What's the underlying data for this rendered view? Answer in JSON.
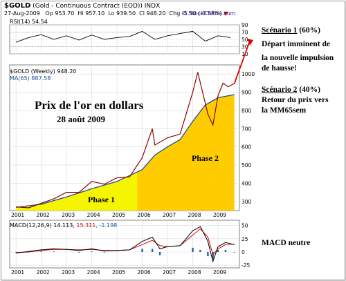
{
  "header": {
    "symbol": "$GOLD",
    "name": "(Gold - Continuous Contract (EOD)) INDX",
    "date": "27-Aug-2009",
    "op": "Op 953.70",
    "hi": "Hi 957.10",
    "lo": "Lo 939.50",
    "cl": "Cl 948.20",
    "chg": "Chg -5.50 (-0.58%)",
    "chg_arrow": "▼",
    "watermark": "© StockCharts.com"
  },
  "panels": {
    "rsi_label": "RSI(14) 54.54",
    "price_label": "$GOLD (Weekly) 948.20",
    "ma_label": "MA(65) 887.58",
    "macd_label_a": "MACD(12,26,9) 14.113, ",
    "macd_label_b": "15.311",
    "macd_label_c": ", -1.198"
  },
  "annotations": {
    "title_line1": "Prix de l'or en dollars",
    "title_line2": "28 août 2009",
    "phase1": "Phase 1",
    "phase2": "Phase 2",
    "scenario1_title": "Scénario 1",
    "scenario1_pct": " (60%)",
    "scenario1_text1": "Départ imminent de",
    "scenario1_text2": "la nouvelle impulsion",
    "scenario1_text3": "de hausse!",
    "scenario2_title": "Scénario 2",
    "scenario2_pct": " (40%)",
    "scenario2_text1": "Retour du prix vers",
    "scenario2_text2": "la MM65sem",
    "macd_note": "MACD neutre"
  },
  "colors": {
    "price": "#8b0000",
    "ma": "#1f4e9c",
    "fill_phase1": "#f5f500",
    "fill_phase2": "#ffcc00",
    "macd": "#000000",
    "signal": "#d00000",
    "hist": "#1f5fa8",
    "arrow": "#e00000",
    "grid": "#d9d9d9"
  },
  "chart_data": [
    {
      "type": "line",
      "panel": "rsi",
      "ylim": [
        10,
        90
      ],
      "yticks": [
        10,
        30,
        50,
        70,
        90
      ],
      "refs": [
        30,
        70
      ],
      "x": [
        2001,
        2001.5,
        2002,
        2002.5,
        2003,
        2003.5,
        2004,
        2004.5,
        2005,
        2005.5,
        2006,
        2006.5,
        2007,
        2007.5,
        2008,
        2008.5,
        2009,
        2009.5
      ],
      "values": [
        42,
        55,
        63,
        50,
        60,
        48,
        62,
        50,
        55,
        58,
        72,
        50,
        60,
        66,
        72,
        45,
        60,
        55
      ]
    },
    {
      "type": "line",
      "panel": "price",
      "title": "Prix de l'or en dollars",
      "ylim": [
        250,
        1050
      ],
      "yticks": [
        300,
        400,
        500,
        600,
        700,
        800,
        900,
        1000
      ],
      "xticks": [
        2001,
        2002,
        2003,
        2004,
        2005,
        2006,
        2007,
        2008,
        2009
      ],
      "series": [
        {
          "name": "$GOLD (Weekly)",
          "x": [
            2001,
            2001.5,
            2002,
            2002.5,
            2003,
            2003.5,
            2004,
            2004.5,
            2005,
            2005.5,
            2006,
            2006.4,
            2006.5,
            2007,
            2007.5,
            2008,
            2008.2,
            2008.6,
            2008.8,
            2009,
            2009.2,
            2009.4,
            2009.65
          ],
          "values": [
            270,
            265,
            290,
            315,
            350,
            350,
            410,
            395,
            430,
            435,
            540,
            700,
            610,
            650,
            670,
            900,
            1010,
            780,
            720,
            880,
            950,
            930,
            948
          ]
        },
        {
          "name": "MA(65)",
          "x": [
            2001,
            2002,
            2003,
            2004,
            2005,
            2006,
            2006.5,
            2007,
            2007.5,
            2008,
            2008.5,
            2009,
            2009.65
          ],
          "values": [
            268,
            285,
            325,
            370,
            410,
            475,
            555,
            600,
            640,
            740,
            830,
            870,
            887
          ]
        }
      ],
      "phases": [
        {
          "name": "Phase 1",
          "x_range": [
            2001,
            2005.8
          ]
        },
        {
          "name": "Phase 2",
          "x_range": [
            2005.8,
            2009.65
          ]
        }
      ]
    },
    {
      "type": "line",
      "panel": "macd",
      "ylim": [
        -30,
        60
      ],
      "yticks": [
        -25,
        0,
        25,
        50
      ],
      "xticks": [
        2001,
        2002,
        2003,
        2004,
        2005,
        2006,
        2007,
        2008,
        2009
      ],
      "x": [
        2001,
        2001.5,
        2002,
        2002.5,
        2003,
        2003.5,
        2004,
        2004.5,
        2005,
        2005.5,
        2006,
        2006.4,
        2006.7,
        2007,
        2007.5,
        2008,
        2008.3,
        2008.6,
        2008.8,
        2009,
        2009.3,
        2009.65
      ],
      "series": [
        {
          "name": "MACD",
          "values": [
            -2,
            1,
            4,
            6,
            5,
            3,
            6,
            2,
            3,
            4,
            20,
            28,
            6,
            10,
            12,
            40,
            48,
            20,
            -18,
            10,
            18,
            14
          ]
        },
        {
          "name": "Signal",
          "values": [
            -1,
            0,
            3,
            5,
            5,
            4,
            5,
            3,
            3,
            4,
            14,
            22,
            12,
            10,
            12,
            32,
            44,
            28,
            -5,
            6,
            14,
            15
          ]
        }
      ]
    }
  ]
}
